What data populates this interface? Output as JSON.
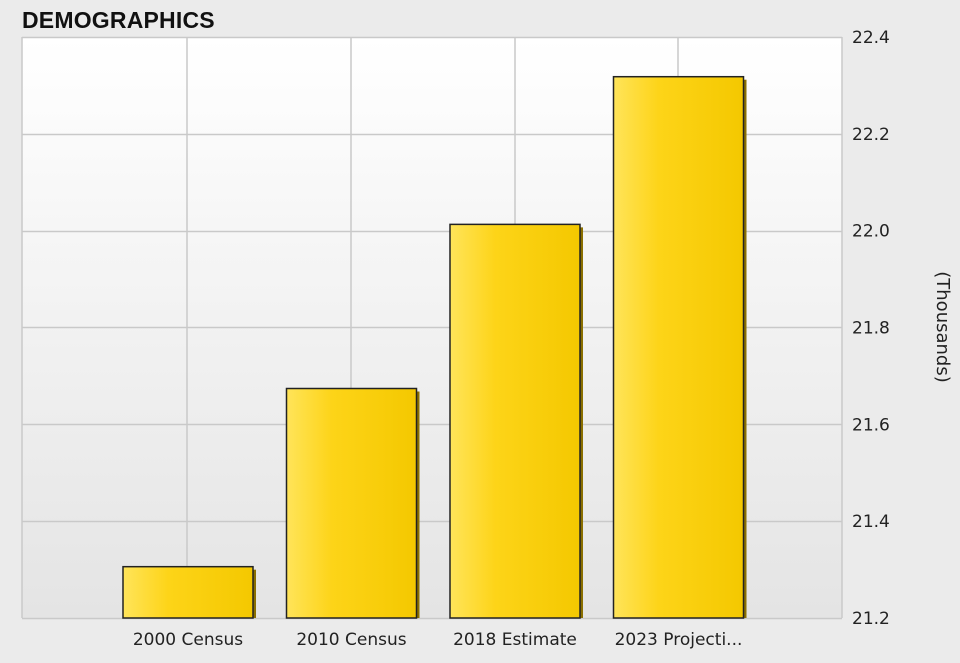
{
  "header": {
    "title": "DEMOGRAPHICS"
  },
  "chart_data": {
    "type": "bar",
    "categories": [
      "2000 Census",
      "2010 Census",
      "2018 Estimate",
      "2023 Projecti..."
    ],
    "values": [
      21.306,
      21.674,
      22.013,
      22.318
    ],
    "ylabel": "(Thousands)",
    "xlabel": "",
    "ylim": [
      21.2,
      22.4
    ],
    "y_ticks": [
      "21.2",
      "21.4",
      "21.6",
      "21.8",
      "22.0",
      "22.2",
      "22.4"
    ],
    "y_axis_side": "right",
    "grid": true,
    "colors": {
      "bar_fill": "#fdd418",
      "bar_highlight": "#ffe45a",
      "bar_edge": "#222222",
      "bar_shadow": "#8a6f00",
      "grid": "#c9c9c9",
      "plot_top": "#ffffff",
      "plot_bottom": "#e4e4e4"
    }
  }
}
